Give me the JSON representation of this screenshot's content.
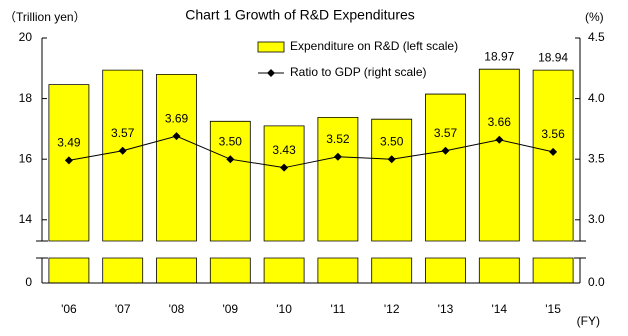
{
  "chart_data": {
    "type": "bar-line",
    "title": "Chart 1   Growth of R&D Expenditures",
    "y_label": "（Trillion yen）",
    "y2_label": "(%)",
    "x_label": "(FY)",
    "categories": [
      "'06",
      "'07",
      "'08",
      "'09",
      "'10",
      "'11",
      "'12",
      "'13",
      "'14",
      "'15"
    ],
    "series": [
      {
        "name": "Expenditure on R&D (left scale)",
        "type": "bar",
        "color": "#ffff00",
        "values": [
          18.46,
          18.94,
          18.8,
          17.25,
          17.1,
          17.38,
          17.32,
          18.15,
          18.97,
          18.94
        ],
        "value_labels": [
          null,
          null,
          null,
          null,
          null,
          null,
          null,
          null,
          "18.97",
          "18.94"
        ]
      },
      {
        "name": "Ratio to GDP (right scale)",
        "type": "line",
        "axis": "y2",
        "color": "#000000",
        "values": [
          3.49,
          3.57,
          3.69,
          3.5,
          3.43,
          3.52,
          3.5,
          3.57,
          3.66,
          3.56
        ],
        "value_labels": [
          "3.49",
          "3.57",
          "3.69",
          "3.50",
          "3.43",
          "3.52",
          "3.50",
          "3.57",
          "3.66",
          "3.56"
        ]
      }
    ],
    "ylim": [
      0,
      20
    ],
    "ybreak": [
      0.8,
      13.3
    ],
    "yticks": [
      0,
      14,
      16,
      18,
      20
    ],
    "y2lim": [
      0,
      4.5
    ],
    "y2break": [
      0.2,
      2.825
    ],
    "y2ticks": [
      {
        "value": 0,
        "label": "0.0"
      },
      {
        "value": 3,
        "label": "3.0"
      },
      {
        "value": 3.5,
        "label": "3.5"
      },
      {
        "value": 4,
        "label": "4.0"
      },
      {
        "value": 4.5,
        "label": "4.5"
      }
    ]
  }
}
